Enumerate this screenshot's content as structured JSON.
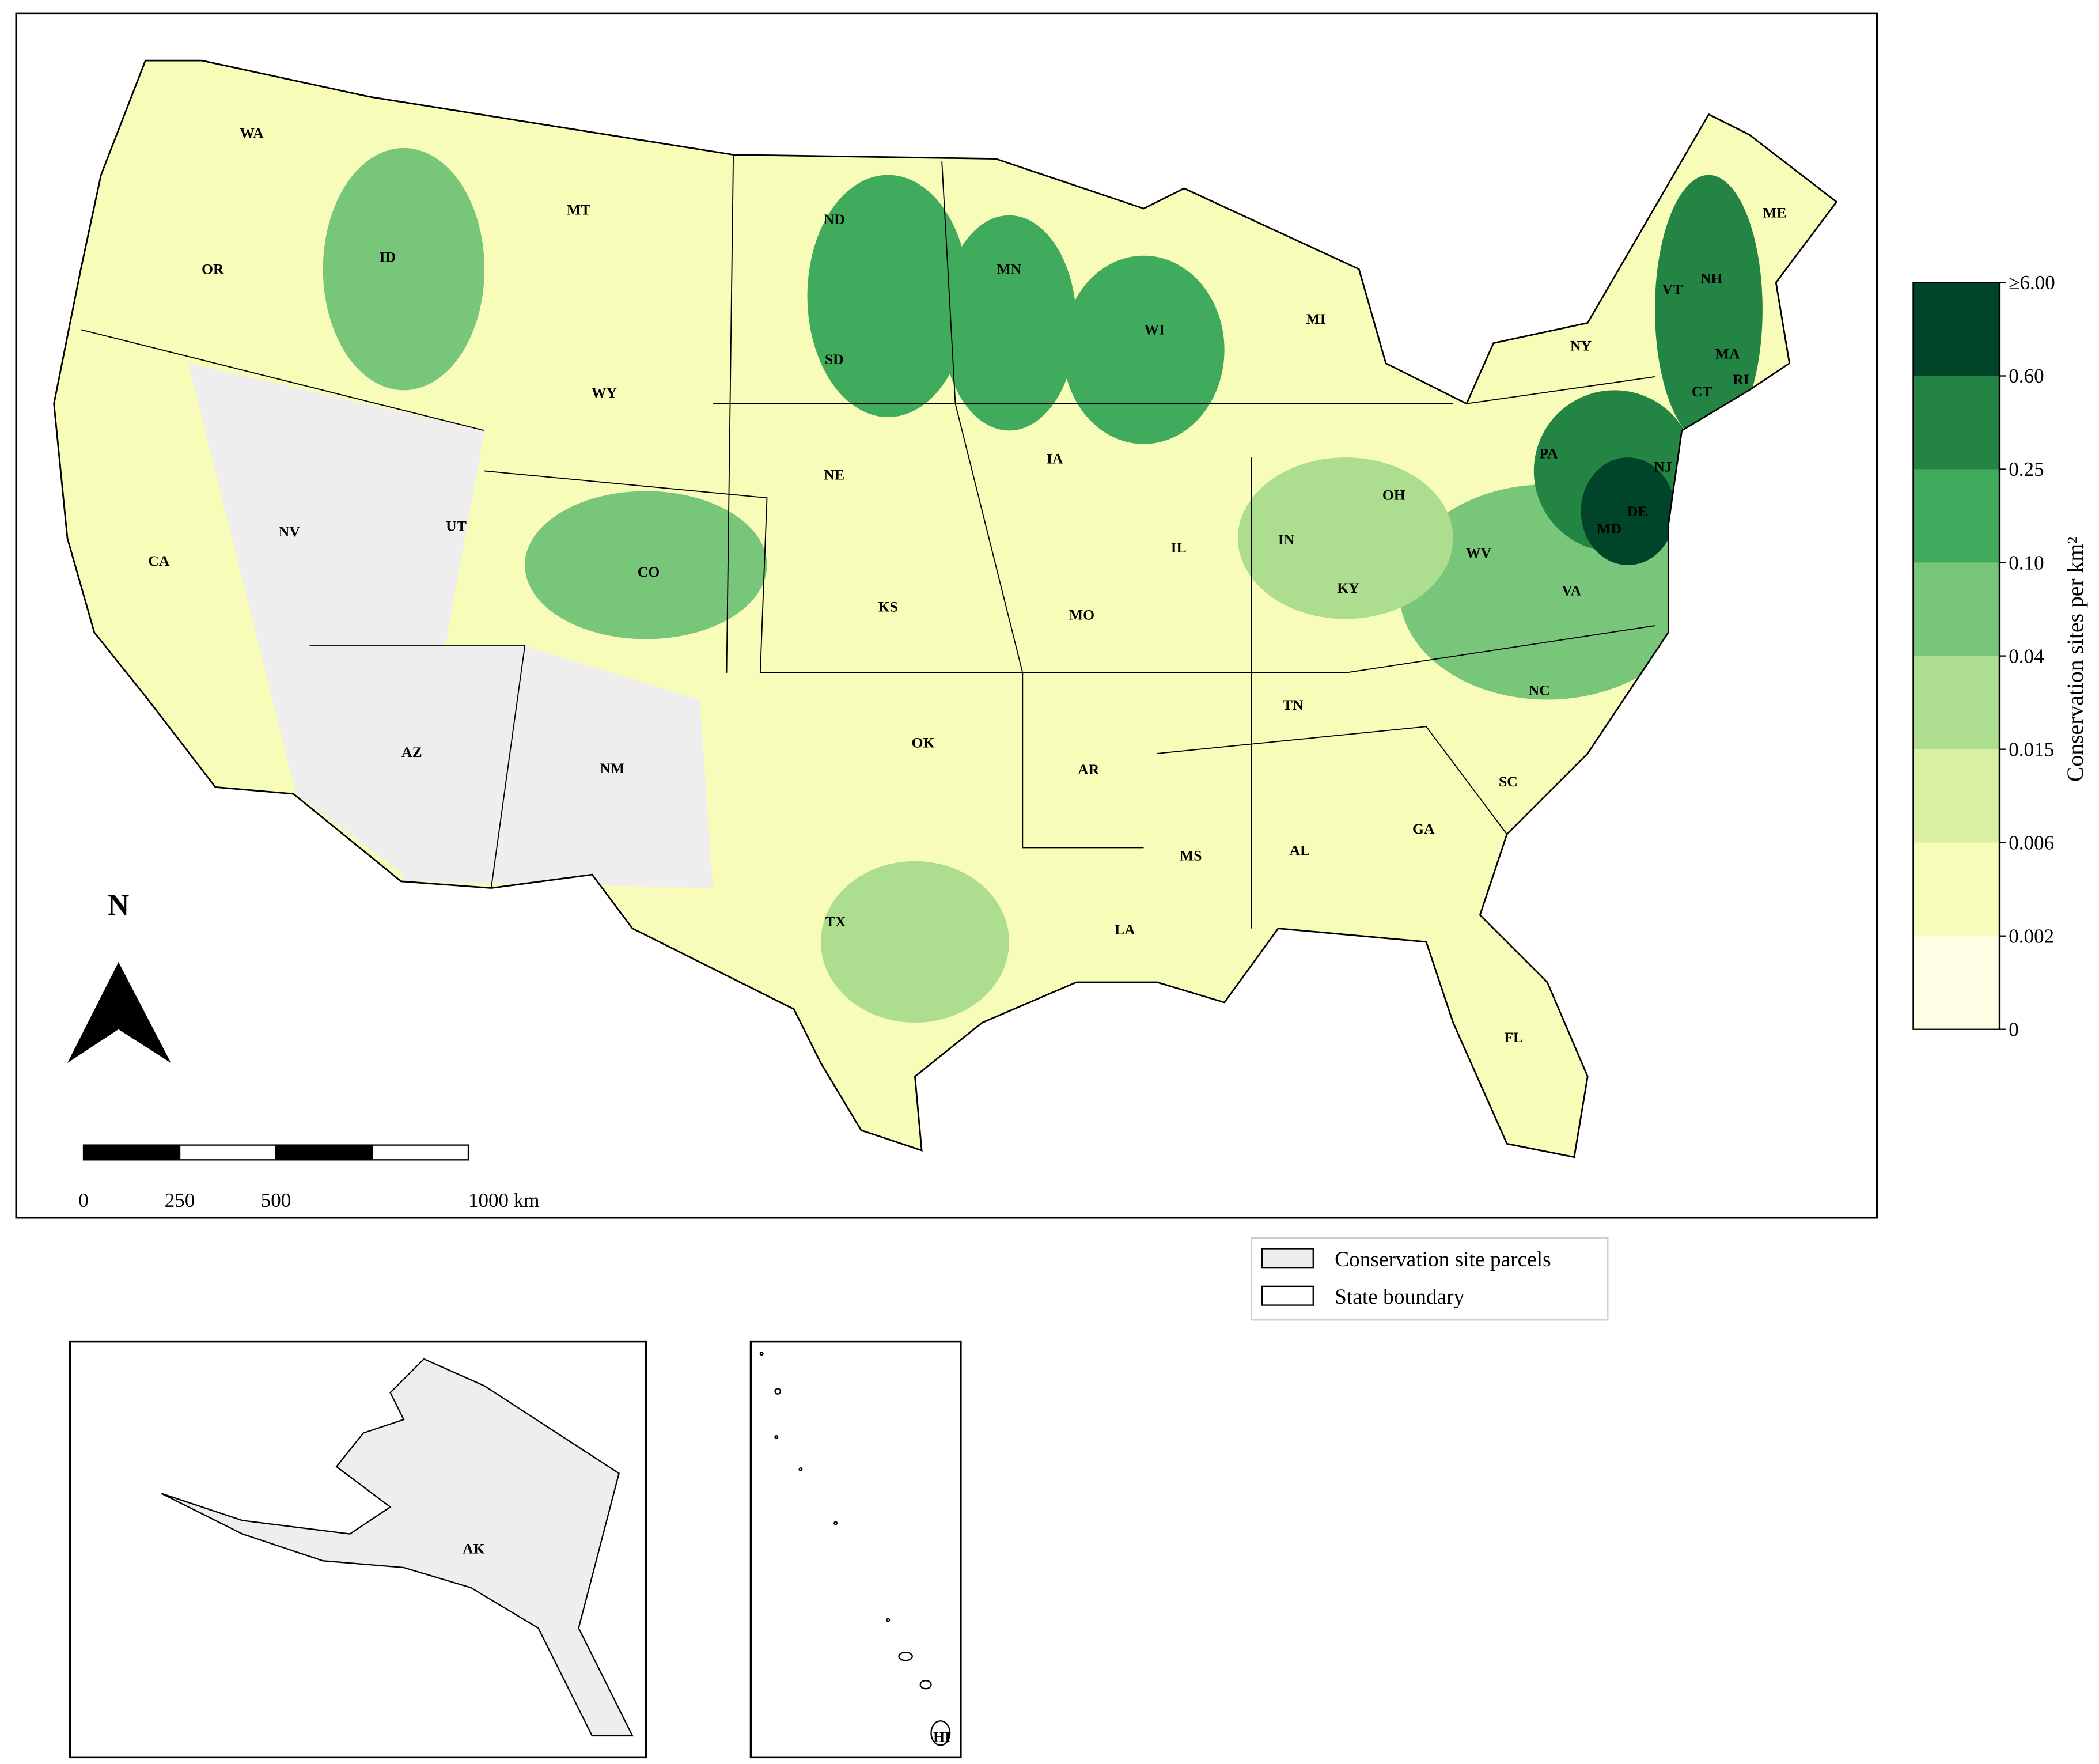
{
  "map": {
    "states": [
      "WA",
      "OR",
      "CA",
      "ID",
      "NV",
      "MT",
      "WY",
      "UT",
      "AZ",
      "CO",
      "NM",
      "ND",
      "SD",
      "NE",
      "KS",
      "OK",
      "TX",
      "MN",
      "IA",
      "MO",
      "AR",
      "LA",
      "WI",
      "IL",
      "MS",
      "MI",
      "IN",
      "KY",
      "TN",
      "AL",
      "OH",
      "GA",
      "FL",
      "SC",
      "NC",
      "WV",
      "VA",
      "PA",
      "NY",
      "VT",
      "NH",
      "ME",
      "MA",
      "CT",
      "RI",
      "NJ",
      "DE",
      "MD"
    ],
    "north": "N",
    "scale_bar": {
      "ticks": [
        0,
        250,
        500,
        {
          "value": 1000,
          "label": "1000 km"
        }
      ],
      "segments": [
        250,
        250,
        250,
        250
      ]
    },
    "colorbar": {
      "title": "Conservation sites per km²",
      "ticks": [
        0,
        0.002,
        0.006,
        0.015,
        0.04,
        {
          "value": 0.1,
          "label": "0.10"
        },
        0.25,
        {
          "value": 0.6,
          "label": "0.60"
        },
        {
          "value": 6,
          "label": "≥6.00"
        }
      ],
      "colors": [
        "#ffffe5",
        "#f7fcb9",
        "#d9f0a3",
        "#addd8e",
        "#78c679",
        "#41ab5d",
        "#238443",
        "#004529"
      ]
    },
    "legend": {
      "items": [
        "Conservation site parcels",
        "State boundary"
      ]
    },
    "insets": {
      "alaska": "AK",
      "hawaii": "HI"
    }
  }
}
